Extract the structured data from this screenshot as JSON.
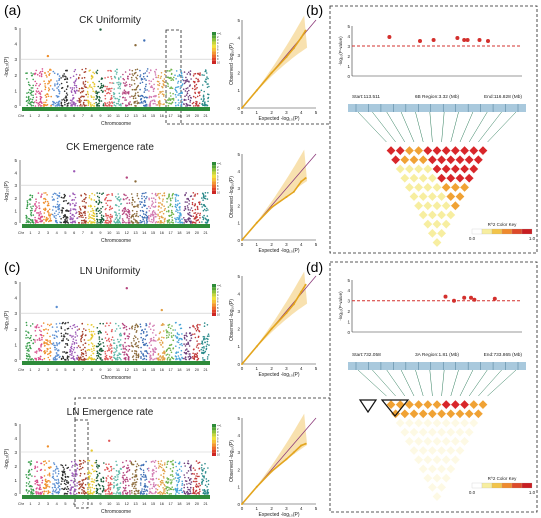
{
  "panel_labels": [
    "(a)",
    "(b)",
    "(c)",
    "(d)"
  ],
  "manhattan_common": {
    "xlabel": "Chromosome",
    "ylabel": "-log₁₀(P)",
    "chromosomes": [
      "Chr",
      "1",
      "2",
      "3",
      "4",
      "5",
      "6",
      "7",
      "8",
      "9",
      "10",
      "11",
      "12",
      "13",
      "14",
      "15",
      "16",
      "17",
      "18",
      "19",
      "20",
      "21"
    ],
    "yticks": [
      "0",
      "1",
      "2",
      "3",
      "4",
      "5"
    ],
    "density_key": [
      "<=1",
      "2",
      "3",
      "4",
      "5",
      "6",
      "7",
      "8",
      "9",
      "10"
    ]
  },
  "qq_common": {
    "xlabel": "Expected -log₁₀(P)",
    "ylabel": "Observed -log₁₀(P)",
    "xticks": [
      "0",
      "1",
      "2",
      "3",
      "4",
      "5"
    ],
    "yticks": [
      "0",
      "1",
      "2",
      "3",
      "4",
      "5"
    ]
  },
  "chart_data": [
    {
      "type": "scatter",
      "plot": "manhattan",
      "title": "CK Uniformity",
      "threshold": 3.0,
      "ylim": [
        0,
        5
      ],
      "peaks": [
        {
          "chr": "3",
          "y": 3.2
        },
        {
          "chr": "9",
          "y": 4.9
        },
        {
          "chr": "13",
          "y": 3.9
        },
        {
          "chr": "14",
          "y": 4.2
        }
      ]
    },
    {
      "type": "line",
      "plot": "qq",
      "series": [
        {
          "x": [
            0,
            1,
            2,
            3,
            3.5,
            4,
            4.3
          ],
          "y": [
            0,
            1,
            2,
            2.9,
            3.4,
            4.0,
            4.4
          ]
        }
      ]
    },
    {
      "type": "scatter",
      "plot": "manhattan",
      "title": "CK Emergence rate",
      "threshold": 3.0,
      "ylim": [
        0,
        5
      ],
      "peaks": [
        {
          "chr": "6",
          "y": 4.1
        },
        {
          "chr": "12",
          "y": 3.6
        },
        {
          "chr": "13",
          "y": 3.3
        }
      ]
    },
    {
      "type": "line",
      "plot": "qq",
      "series": [
        {
          "x": [
            0,
            1,
            2,
            3,
            3.5,
            4,
            4.3
          ],
          "y": [
            0,
            1,
            1.9,
            2.5,
            2.8,
            3.4,
            3.6
          ]
        }
      ]
    },
    {
      "type": "scatter",
      "plot": "manhattan",
      "title": "LN Uniformity",
      "threshold": 3.0,
      "ylim": [
        0,
        5
      ],
      "peaks": [
        {
          "chr": "4",
          "y": 3.4
        },
        {
          "chr": "12",
          "y": 4.6
        },
        {
          "chr": "16",
          "y": 3.2
        }
      ]
    },
    {
      "type": "line",
      "plot": "qq",
      "series": [
        {
          "x": [
            0,
            1,
            2,
            3,
            3.5,
            4,
            4.3
          ],
          "y": [
            0,
            1,
            2,
            2.9,
            3.4,
            4.1,
            4.5
          ]
        }
      ]
    },
    {
      "type": "scatter",
      "plot": "manhattan",
      "title": "LN Emergence rate",
      "threshold": 3.0,
      "ylim": [
        0,
        5
      ],
      "peaks": [
        {
          "chr": "3",
          "y": 3.4
        },
        {
          "chr": "8",
          "y": 3.1
        },
        {
          "chr": "10",
          "y": 3.8
        }
      ]
    },
    {
      "type": "line",
      "plot": "qq",
      "series": [
        {
          "x": [
            0,
            1,
            2,
            3,
            3.5,
            4,
            4.3
          ],
          "y": [
            0,
            1,
            1.9,
            2.6,
            3.0,
            3.4,
            3.5
          ]
        }
      ]
    },
    {
      "type": "scatter",
      "plot": "region",
      "ylabel": "-log₁₀(P-value)",
      "threshold": 3.0,
      "ylim": [
        0,
        5
      ],
      "region": "6B Region:3.32 (Mb)",
      "start": "Start:113.511",
      "end": "End:116.828 (Mb)",
      "x": [
        0.22,
        0.4,
        0.48,
        0.62,
        0.66,
        0.68,
        0.75,
        0.8
      ],
      "y": [
        3.9,
        3.5,
        3.6,
        3.8,
        3.6,
        3.6,
        3.6,
        3.5
      ],
      "legend_title": "R^2 Color Key",
      "legend_ticks": [
        "0.0",
        "1.0"
      ]
    },
    {
      "type": "scatter",
      "plot": "region",
      "ylabel": "-log₁₀(P-value)",
      "threshold": 3.0,
      "ylim": [
        0,
        5
      ],
      "region": "3A Region:1.81 (Mb)",
      "start": "Start:732.058",
      "end": "End:733.865 (Mb)",
      "x": [
        0.55,
        0.6,
        0.66,
        0.7,
        0.72,
        0.84
      ],
      "y": [
        3.4,
        3.0,
        3.3,
        3.3,
        3.1,
        3.2
      ],
      "legend_title": "R^2 Color Key",
      "legend_ticks": [
        "0.0",
        "1.0"
      ]
    }
  ],
  "colors": {
    "chrom": [
      "#3a9e4d",
      "#d84d8c",
      "#ef8f2c",
      "#5b8ed1",
      "#2d2d2d",
      "#9b58b5",
      "#a53e2a",
      "#e6c92f",
      "#1c5f3a",
      "#e05858",
      "#5fb8a8",
      "#b4457e",
      "#8a6a3a",
      "#3f6fb5",
      "#d27bb1",
      "#e1a046",
      "#70b34c",
      "#48a4d8",
      "#6e3c7b",
      "#c23a3a",
      "#2b8a8a"
    ],
    "threshold": "#c9c9c9",
    "qq_line": "#8c3a7a",
    "qq_band": "#f3c86e",
    "qq_pts": "#e3a51e",
    "region_pts": "#d3302d",
    "dash": "#d3302d",
    "track": "#a9c9dd",
    "ld_high": "#d8262a",
    "ld_mid": "#f0a234",
    "ld_low": "#f7eea0"
  }
}
